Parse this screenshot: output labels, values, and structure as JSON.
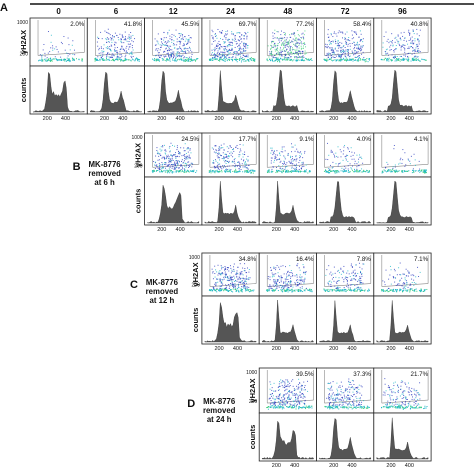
{
  "panel_a": {
    "letter": "A",
    "timepoints": [
      "0",
      "6",
      "12",
      "24",
      "48",
      "72",
      "96"
    ],
    "percents": [
      "2.0%",
      "41.8%",
      "45.5%",
      "69.7%",
      "77.2%",
      "58.4%",
      "40.8%"
    ]
  },
  "panels": [
    {
      "letter": "B",
      "title": [
        "MK-8776",
        "removed",
        "at 6 h"
      ],
      "percents": [
        "24.5%",
        "17.7%",
        "9.1%",
        "4.0%",
        "4.1%"
      ]
    },
    {
      "letter": "C",
      "title": [
        "MK-8776",
        "removed",
        "at 12 h"
      ],
      "percents": [
        "34.8%",
        "16.4%",
        "7.8%",
        "7.1%"
      ]
    },
    {
      "letter": "D",
      "title": [
        "MK-8776",
        "removed",
        "at 24 h"
      ],
      "percents": [
        "39.5%",
        "37.3%",
        "21.7%"
      ]
    }
  ],
  "axis": {
    "y_top": "γH2AX",
    "y_bottom": "counts",
    "tick_1000": "1000",
    "tick_200": "200",
    "x_ticks": [
      "200",
      "400"
    ]
  },
  "colors": {
    "dots_blue": "#2f3fbf",
    "dots_cyan": "#22b8c8",
    "dots_green": "#3fcf7a",
    "hist": "#555555",
    "frame": "#222222"
  }
}
